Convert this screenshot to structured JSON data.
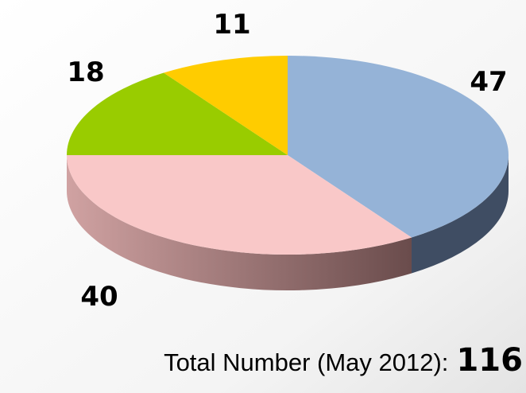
{
  "chart_data": {
    "type": "pie",
    "values": [
      47,
      40,
      18,
      11
    ],
    "colors": [
      "#95b3d7",
      "#f9c8c8",
      "#99cc00",
      "#ffcc00"
    ],
    "total_label": "Total Number (May 2012):",
    "total": 116
  }
}
